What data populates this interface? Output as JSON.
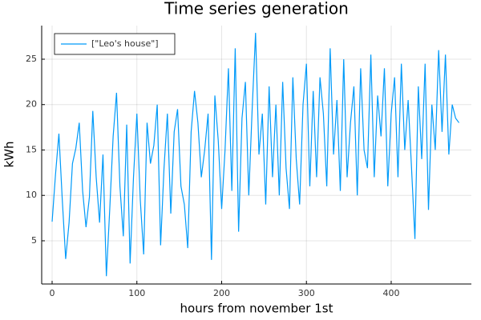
{
  "chart_data": {
    "type": "line",
    "title": "Time series generation",
    "x_label": "hours from november 1st",
    "y_label": "kWh",
    "x": [
      0,
      4,
      8,
      12,
      16,
      20,
      24,
      28,
      32,
      36,
      40,
      44,
      48,
      52,
      56,
      60,
      64,
      68,
      72,
      76,
      80,
      84,
      88,
      92,
      96,
      100,
      104,
      108,
      112,
      116,
      120,
      124,
      128,
      132,
      136,
      140,
      144,
      148,
      152,
      156,
      160,
      164,
      168,
      172,
      176,
      180,
      184,
      188,
      192,
      196,
      200,
      204,
      208,
      212,
      216,
      220,
      224,
      228,
      232,
      236,
      240,
      244,
      248,
      252,
      256,
      260,
      264,
      268,
      272,
      276,
      280,
      284,
      288,
      292,
      296,
      300,
      304,
      308,
      312,
      316,
      320,
      324,
      328,
      332,
      336,
      340,
      344,
      348,
      352,
      356,
      360,
      364,
      368,
      372,
      376,
      380,
      384,
      388,
      392,
      396,
      400,
      404,
      408,
      412,
      416,
      420,
      424,
      428,
      432,
      436,
      440,
      444,
      448,
      452,
      456,
      460,
      464,
      468,
      472,
      476,
      480
    ],
    "series": [
      {
        "name": "[\"Leo's house\"]",
        "color": "#009af9",
        "values": [
          7.1,
          12.3,
          16.8,
          9.5,
          3.0,
          7.0,
          13.5,
          15.2,
          18.0,
          10.5,
          6.5,
          9.8,
          19.3,
          12.0,
          7.0,
          14.5,
          1.1,
          8.5,
          16.5,
          21.3,
          11.0,
          5.5,
          17.8,
          2.5,
          12.0,
          19.0,
          9.5,
          3.5,
          18.0,
          13.5,
          15.5,
          20.0,
          4.5,
          13.0,
          19.0,
          8.0,
          17.0,
          19.5,
          11.0,
          9.0,
          4.2,
          17.0,
          21.5,
          18.0,
          12.0,
          15.0,
          19.0,
          2.9,
          21.0,
          16.0,
          8.5,
          15.0,
          24.0,
          10.5,
          26.2,
          6.0,
          18.5,
          22.5,
          10.0,
          19.5,
          27.9,
          14.5,
          19.0,
          9.0,
          22.0,
          12.0,
          20.0,
          10.0,
          22.5,
          13.0,
          8.5,
          23.0,
          14.0,
          9.0,
          20.0,
          24.5,
          11.0,
          21.5,
          12.0,
          23.0,
          19.0,
          11.0,
          26.2,
          14.5,
          20.5,
          10.5,
          25.0,
          12.0,
          18.0,
          22.0,
          10.0,
          24.0,
          15.0,
          13.0,
          25.5,
          12.0,
          21.0,
          16.5,
          24.0,
          11.0,
          19.0,
          23.0,
          12.0,
          24.5,
          15.0,
          20.5,
          13.0,
          5.2,
          22.0,
          14.0,
          24.5,
          8.4,
          20.0,
          15.0,
          26.0,
          17.0,
          25.5,
          14.5,
          20.0,
          18.5,
          18.0
        ]
      }
    ],
    "xlim": [
      -12.3,
      494.6
    ],
    "ylim": [
      0.24,
      28.7
    ],
    "xticks": [
      0,
      100,
      200,
      300,
      400
    ],
    "yticks": [
      5,
      10,
      15,
      20,
      25
    ],
    "grid": true,
    "legend": "top-left"
  }
}
